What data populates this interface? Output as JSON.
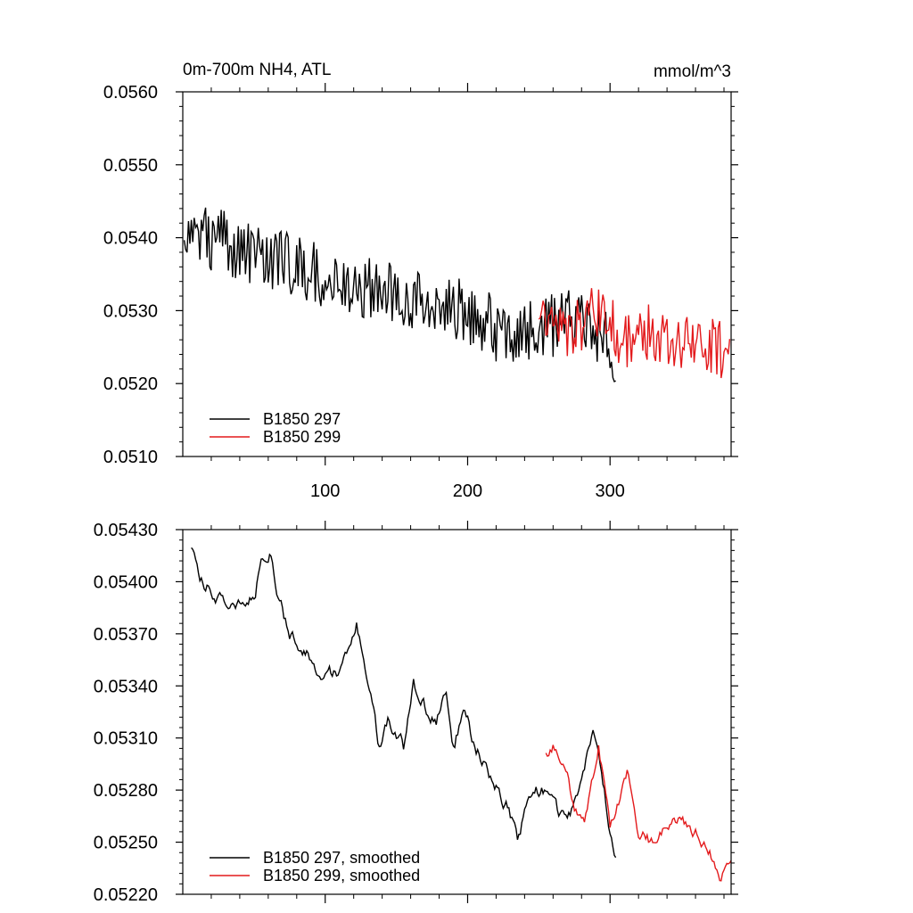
{
  "chart_data": [
    {
      "type": "line",
      "title": "0m-700m NH4, ATL",
      "units": "mmol/m^3",
      "xlim": [
        0,
        385
      ],
      "ylim": [
        0.051,
        0.056
      ],
      "y_ticks": [
        0.051,
        0.052,
        0.053,
        0.054,
        0.055,
        0.056
      ],
      "y_tick_labels": [
        "0.0510",
        "0.0520",
        "0.0530",
        "0.0540",
        "0.0550",
        "0.0560"
      ],
      "x_ticks": [
        100,
        200,
        300
      ],
      "x_tick_labels": [
        "100",
        "200",
        "300"
      ],
      "legend_position": "bottom-left",
      "series": [
        {
          "name": "B1850 297",
          "color": "#000000",
          "x_start": 1,
          "noise_seed": 297,
          "noise_amplitude": 0.00045,
          "trend": [
            [
              1,
              0.0541
            ],
            [
              60,
              0.05375
            ],
            [
              120,
              0.0533
            ],
            [
              180,
              0.05315
            ],
            [
              230,
              0.05265
            ],
            [
              260,
              0.0528
            ],
            [
              280,
              0.053
            ],
            [
              300,
              0.0525
            ],
            [
              304,
              0.05245
            ]
          ]
        },
        {
          "name": "B1850 299",
          "color": "#e31a1c",
          "x_start": 250,
          "noise_seed": 299,
          "noise_amplitude": 0.0004,
          "trend": [
            [
              250,
              0.053
            ],
            [
              270,
              0.05265
            ],
            [
              290,
              0.053
            ],
            [
              310,
              0.0526
            ],
            [
              330,
              0.0527
            ],
            [
              350,
              0.05255
            ],
            [
              370,
              0.05255
            ],
            [
              384,
              0.0524
            ]
          ]
        }
      ]
    },
    {
      "type": "line",
      "ylim": [
        0.0522,
        0.0543
      ],
      "xlim": [
        0,
        385
      ],
      "y_ticks": [
        0.0522,
        0.0525,
        0.0528,
        0.0531,
        0.0534,
        0.0537,
        0.054,
        0.0543
      ],
      "y_tick_labels": [
        "0.05220",
        "0.05250",
        "0.05280",
        "0.05310",
        "0.05340",
        "0.05370",
        "0.05400",
        "0.05430"
      ],
      "x_ticks": [
        100,
        200,
        300
      ],
      "legend_position": "bottom-left",
      "series": [
        {
          "name": "B1850 297, smoothed",
          "color": "#000000",
          "x_start": 6,
          "noise_seed": 1297,
          "noise_amplitude": 8e-05,
          "trend": [
            [
              6,
              0.05418
            ],
            [
              12,
              0.054
            ],
            [
              20,
              0.05395
            ],
            [
              35,
              0.05385
            ],
            [
              50,
              0.0539
            ],
            [
              55,
              0.0541
            ],
            [
              62,
              0.05416
            ],
            [
              66,
              0.05395
            ],
            [
              75,
              0.0537
            ],
            [
              85,
              0.0536
            ],
            [
              95,
              0.0535
            ],
            [
              110,
              0.05345
            ],
            [
              118,
              0.05365
            ],
            [
              122,
              0.05375
            ],
            [
              130,
              0.0534
            ],
            [
              138,
              0.05305
            ],
            [
              145,
              0.0532
            ],
            [
              155,
              0.05305
            ],
            [
              162,
              0.0534
            ],
            [
              168,
              0.0533
            ],
            [
              178,
              0.0532
            ],
            [
              185,
              0.05335
            ],
            [
              190,
              0.05305
            ],
            [
              198,
              0.05325
            ],
            [
              205,
              0.05305
            ],
            [
              215,
              0.0529
            ],
            [
              228,
              0.0527
            ],
            [
              235,
              0.0525
            ],
            [
              245,
              0.0528
            ],
            [
              255,
              0.0528
            ],
            [
              262,
              0.0527
            ],
            [
              270,
              0.0526
            ],
            [
              278,
              0.0528
            ],
            [
              288,
              0.05318
            ],
            [
              294,
              0.0529
            ],
            [
              300,
              0.05255
            ],
            [
              304,
              0.0524
            ]
          ]
        },
        {
          "name": "B1850 299, smoothed",
          "color": "#e31a1c",
          "x_start": 255,
          "noise_seed": 1299,
          "noise_amplitude": 7e-05,
          "trend": [
            [
              255,
              0.053
            ],
            [
              260,
              0.05305
            ],
            [
              268,
              0.05295
            ],
            [
              275,
              0.0527
            ],
            [
              282,
              0.05265
            ],
            [
              292,
              0.05305
            ],
            [
              300,
              0.0526
            ],
            [
              305,
              0.0527
            ],
            [
              312,
              0.0529
            ],
            [
              320,
              0.05255
            ],
            [
              330,
              0.0525
            ],
            [
              345,
              0.05265
            ],
            [
              360,
              0.05255
            ],
            [
              370,
              0.05245
            ],
            [
              378,
              0.0523
            ],
            [
              386,
              0.0524
            ]
          ]
        }
      ]
    }
  ]
}
